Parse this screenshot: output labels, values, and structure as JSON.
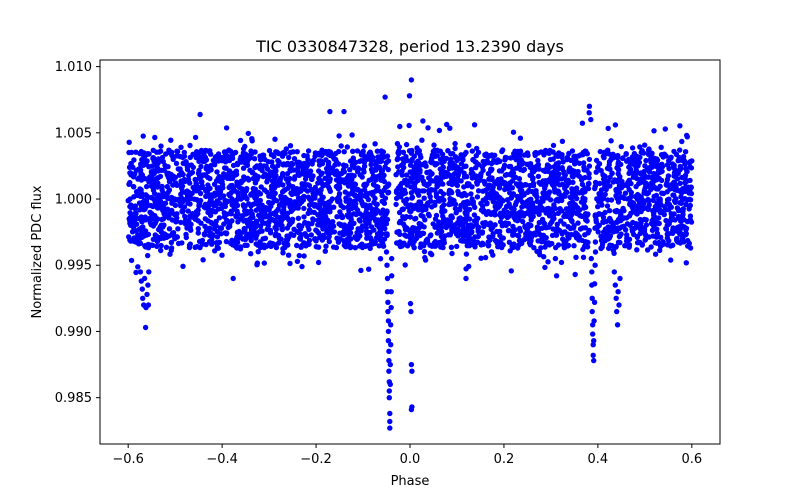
{
  "chart_data": {
    "type": "scatter",
    "title": "TIC 0330847328, period 13.2390 days",
    "xlabel": "Phase",
    "ylabel": "Normalized PDC flux",
    "xlim": [
      -0.66,
      0.66
    ],
    "ylim": [
      0.9815,
      1.0105
    ],
    "x_ticks": [
      -0.6,
      -0.4,
      -0.2,
      0.0,
      0.2,
      0.4,
      0.6
    ],
    "x_tick_labels": [
      "−0.6",
      "−0.4",
      "−0.2",
      "0.0",
      "0.2",
      "0.4",
      "0.6"
    ],
    "y_ticks": [
      0.985,
      0.99,
      0.995,
      1.0,
      1.005,
      1.01
    ],
    "y_tick_labels": [
      "0.985",
      "0.990",
      "0.995",
      "1.000",
      "1.005",
      "1.010"
    ],
    "grid": false,
    "marker_color": "#0000ff",
    "series": [
      {
        "name": "PDC flux",
        "baseline": {
          "x_range": [
            -0.6,
            0.6
          ],
          "center": 1.0,
          "core_halfwidth": 0.0037,
          "outlier_range": [
            0.994,
            1.0066
          ],
          "gaps_x": [
            [
              -0.045,
              -0.03
            ],
            [
              0.382,
              0.393
            ]
          ]
        },
        "points": [
          {
            "x": -0.574,
            "y": 0.9945
          },
          {
            "x": -0.572,
            "y": 0.9938
          },
          {
            "x": -0.57,
            "y": 0.9932
          },
          {
            "x": -0.569,
            "y": 0.9925
          },
          {
            "x": -0.567,
            "y": 0.992
          },
          {
            "x": -0.565,
            "y": 0.994
          },
          {
            "x": -0.563,
            "y": 0.9903
          },
          {
            "x": -0.562,
            "y": 0.9918
          },
          {
            "x": -0.56,
            "y": 0.9928
          },
          {
            "x": -0.558,
            "y": 0.9935
          },
          {
            "x": -0.557,
            "y": 0.992
          },
          {
            "x": -0.556,
            "y": 0.9945
          },
          {
            "x": -0.05,
            "y": 0.996
          },
          {
            "x": -0.049,
            "y": 0.995
          },
          {
            "x": -0.048,
            "y": 0.994
          },
          {
            "x": -0.048,
            "y": 0.993
          },
          {
            "x": -0.047,
            "y": 0.9922
          },
          {
            "x": -0.047,
            "y": 0.9915
          },
          {
            "x": -0.046,
            "y": 0.9908
          },
          {
            "x": -0.046,
            "y": 0.99
          },
          {
            "x": -0.046,
            "y": 0.9893
          },
          {
            "x": -0.045,
            "y": 0.9885
          },
          {
            "x": -0.045,
            "y": 0.9878
          },
          {
            "x": -0.045,
            "y": 0.987
          },
          {
            "x": -0.044,
            "y": 0.9862
          },
          {
            "x": -0.044,
            "y": 0.9855
          },
          {
            "x": -0.044,
            "y": 0.985
          },
          {
            "x": -0.043,
            "y": 0.9838
          },
          {
            "x": -0.043,
            "y": 0.9832
          },
          {
            "x": -0.043,
            "y": 0.9827
          },
          {
            "x": -0.042,
            "y": 0.986
          },
          {
            "x": -0.042,
            "y": 0.9875
          },
          {
            "x": -0.041,
            "y": 0.989
          },
          {
            "x": -0.041,
            "y": 0.9905
          },
          {
            "x": -0.04,
            "y": 0.9918
          },
          {
            "x": -0.04,
            "y": 0.993
          },
          {
            "x": -0.039,
            "y": 0.9942
          },
          {
            "x": -0.039,
            "y": 0.9955
          },
          {
            "x": -0.053,
            "y": 1.0077
          },
          {
            "x": -0.001,
            "y": 1.0078
          },
          {
            "x": 0.003,
            "y": 1.009
          },
          {
            "x": 0.001,
            "y": 0.9921
          },
          {
            "x": 0.002,
            "y": 0.9915
          },
          {
            "x": 0.003,
            "y": 0.9875
          },
          {
            "x": 0.004,
            "y": 0.987
          },
          {
            "x": 0.004,
            "y": 0.9843
          },
          {
            "x": 0.003,
            "y": 0.9841
          },
          {
            "x": 0.386,
            "y": 0.9955
          },
          {
            "x": 0.387,
            "y": 0.9945
          },
          {
            "x": 0.387,
            "y": 0.9935
          },
          {
            "x": 0.388,
            "y": 0.9925
          },
          {
            "x": 0.388,
            "y": 0.9915
          },
          {
            "x": 0.389,
            "y": 0.9905
          },
          {
            "x": 0.389,
            "y": 0.9898
          },
          {
            "x": 0.39,
            "y": 0.989
          },
          {
            "x": 0.39,
            "y": 0.9882
          },
          {
            "x": 0.391,
            "y": 0.9878
          },
          {
            "x": 0.391,
            "y": 0.9893
          },
          {
            "x": 0.392,
            "y": 0.9908
          },
          {
            "x": 0.393,
            "y": 0.9922
          },
          {
            "x": 0.393,
            "y": 0.9936
          },
          {
            "x": 0.394,
            "y": 0.995
          },
          {
            "x": 0.395,
            "y": 0.996
          },
          {
            "x": 0.435,
            "y": 0.9945
          },
          {
            "x": 0.437,
            "y": 0.9935
          },
          {
            "x": 0.439,
            "y": 0.9925
          },
          {
            "x": 0.44,
            "y": 0.9915
          },
          {
            "x": 0.442,
            "y": 0.9905
          },
          {
            "x": 0.443,
            "y": 0.993
          },
          {
            "x": 0.445,
            "y": 0.992
          },
          {
            "x": 0.447,
            "y": 0.994
          },
          {
            "x": 0.382,
            "y": 1.007
          },
          {
            "x": 0.385,
            "y": 1.006
          }
        ]
      }
    ]
  }
}
